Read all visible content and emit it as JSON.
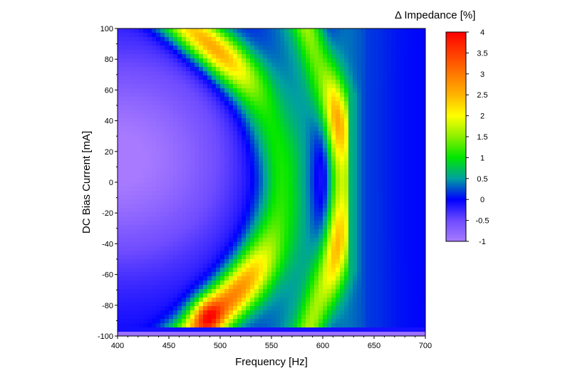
{
  "chart_data": {
    "type": "heatmap",
    "title": "",
    "xlabel": "Frequency [Hz]",
    "ylabel": "DC Bias Current [mA]",
    "colorbar_label": "Δ   Impedance [%]",
    "xlim": [
      400,
      700
    ],
    "ylim": [
      -100,
      100
    ],
    "zlim": [
      -1,
      4
    ],
    "x_ticks": [
      400,
      450,
      500,
      550,
      600,
      650,
      700
    ],
    "y_ticks": [
      -100,
      -80,
      -60,
      -40,
      -20,
      0,
      20,
      40,
      60,
      80,
      100
    ],
    "colorbar_ticks": [
      "-1",
      "-0.5",
      "0",
      "0.5",
      "1",
      "1.5",
      "2",
      "2.5",
      "3",
      "3.5",
      "4"
    ],
    "colorscale": [
      {
        "value": -1.0,
        "color": "#a77aff"
      },
      {
        "value": -0.5,
        "color": "#6e4bff"
      },
      {
        "value": 0.0,
        "color": "#0000ff"
      },
      {
        "value": 0.5,
        "color": "#00a0a0"
      },
      {
        "value": 1.0,
        "color": "#00e600"
      },
      {
        "value": 1.5,
        "color": "#8cf000"
      },
      {
        "value": 2.0,
        "color": "#ffff00"
      },
      {
        "value": 2.5,
        "color": "#ffb400"
      },
      {
        "value": 3.0,
        "color": "#ff7800"
      },
      {
        "value": 3.5,
        "color": "#ff3c00"
      },
      {
        "value": 4.0,
        "color": "#ff0000"
      }
    ],
    "features": {
      "low_frequency_minimum": {
        "frequency": 400,
        "bias": 20,
        "value": -1
      },
      "resonance_1_peaks": [
        {
          "frequency": 495,
          "bias": -90,
          "value": 3.8
        },
        {
          "frequency": 492,
          "bias": 93,
          "value": 3.3
        }
      ],
      "resonance_1_ridge_center": {
        "frequency": 555,
        "bias": 0,
        "value": 0.9
      },
      "trough": {
        "frequency": 600,
        "bias": 10,
        "value": -0.2
      },
      "resonance_2_peaks": [
        {
          "frequency": 620,
          "bias": 45,
          "value": 2.8
        },
        {
          "frequency": 615,
          "bias": -45,
          "value": 2.6
        }
      ],
      "high_frequency_plateau": {
        "frequency_from": 625,
        "value": 0
      },
      "bottom_edge": {
        "bias": -100,
        "value": -1
      }
    }
  }
}
